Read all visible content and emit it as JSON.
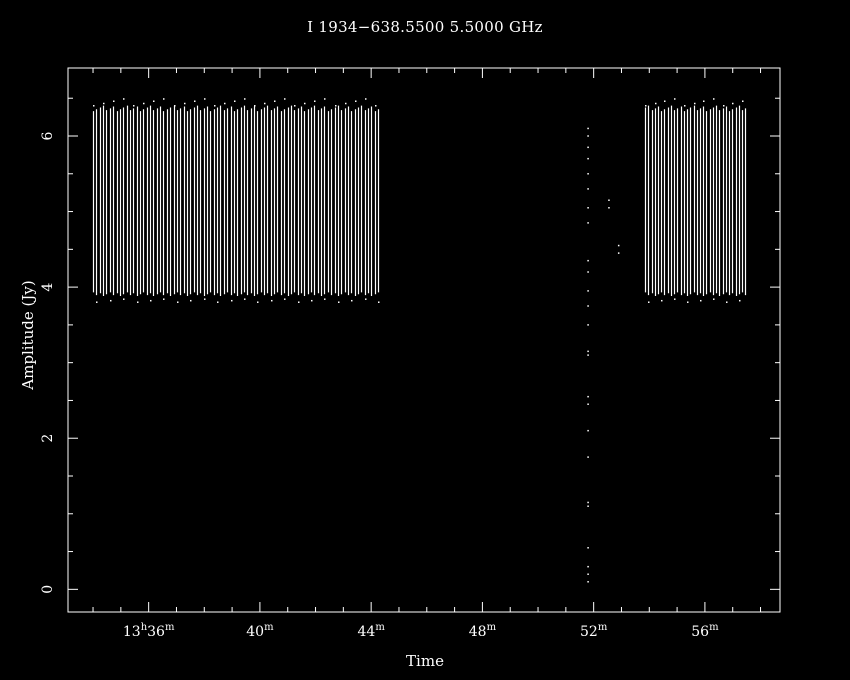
{
  "title": "I 1934−638.5500  5.5000 GHz",
  "chart_data": {
    "type": "scatter",
    "title": "I 1934−638.5500  5.5000 GHz",
    "xlabel": "Time",
    "ylabel": "Amplitude (Jy)",
    "x_unit": "minutes after 13h00m",
    "xlim": [
      33.1,
      58.7
    ],
    "ylim": [
      -0.3,
      6.9
    ],
    "x_ticks": [
      {
        "value": 36,
        "label": "13h36m"
      },
      {
        "value": 40,
        "label": "40m"
      },
      {
        "value": 44,
        "label": "44m"
      },
      {
        "value": 48,
        "label": "48m"
      },
      {
        "value": 52,
        "label": "52m"
      },
      {
        "value": 56,
        "label": "56m"
      }
    ],
    "y_ticks": [
      0,
      2,
      4,
      6
    ],
    "grid": false,
    "series": [
      {
        "x_start": 34.0,
        "x_end": 44.25,
        "n_scans": 86,
        "ymin": 3.93,
        "ymax": 6.33
      },
      {
        "x_start": 53.85,
        "x_end": 57.45,
        "n_scans": 32,
        "ymin": 3.93,
        "ymax": 6.33
      }
    ],
    "scattered_points": [
      {
        "x": 51.8,
        "y": 0.1
      },
      {
        "x": 51.8,
        "y": 0.2
      },
      {
        "x": 51.8,
        "y": 0.3
      },
      {
        "x": 51.8,
        "y": 0.55
      },
      {
        "x": 51.8,
        "y": 1.1
      },
      {
        "x": 51.8,
        "y": 1.15
      },
      {
        "x": 51.8,
        "y": 1.75
      },
      {
        "x": 51.8,
        "y": 2.1
      },
      {
        "x": 51.8,
        "y": 2.45
      },
      {
        "x": 51.8,
        "y": 2.55
      },
      {
        "x": 51.8,
        "y": 3.1
      },
      {
        "x": 51.8,
        "y": 3.15
      },
      {
        "x": 51.8,
        "y": 3.5
      },
      {
        "x": 51.8,
        "y": 3.75
      },
      {
        "x": 51.8,
        "y": 3.95
      },
      {
        "x": 51.8,
        "y": 4.2
      },
      {
        "x": 51.8,
        "y": 4.35
      },
      {
        "x": 51.8,
        "y": 4.85
      },
      {
        "x": 51.8,
        "y": 5.05
      },
      {
        "x": 51.8,
        "y": 5.3
      },
      {
        "x": 51.8,
        "y": 5.5
      },
      {
        "x": 51.8,
        "y": 5.7
      },
      {
        "x": 51.8,
        "y": 5.85
      },
      {
        "x": 51.8,
        "y": 6.0
      },
      {
        "x": 51.8,
        "y": 6.1
      },
      {
        "x": 52.55,
        "y": 5.05
      },
      {
        "x": 52.55,
        "y": 5.15
      },
      {
        "x": 52.9,
        "y": 4.45
      },
      {
        "x": 52.9,
        "y": 4.55
      }
    ],
    "colors": {
      "background": "#000000",
      "foreground": "#ffffff"
    }
  }
}
